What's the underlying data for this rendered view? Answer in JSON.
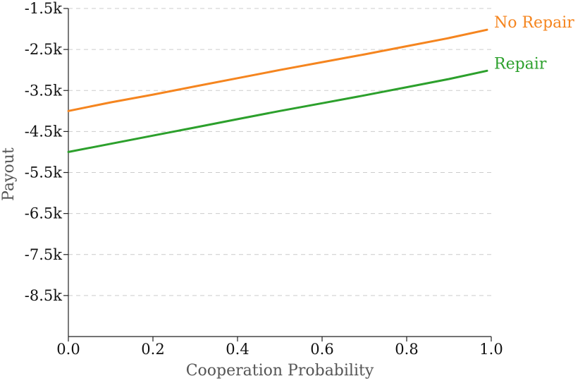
{
  "chart_data": {
    "type": "line",
    "xlabel": "Cooperation Probability",
    "ylabel": "Payout",
    "xlim": [
      0.0,
      1.0
    ],
    "ylim": [
      -9.5,
      -1.5
    ],
    "x_ticks": [
      0.0,
      0.2,
      0.4,
      0.6,
      0.8,
      1.0
    ],
    "x_tick_labels": [
      "0.0",
      "0.2",
      "0.4",
      "0.6",
      "0.8",
      "1.0"
    ],
    "y_ticks": [
      -1.5,
      -2.5,
      -3.5,
      -4.5,
      -5.5,
      -6.5,
      -7.5,
      -8.5
    ],
    "y_tick_labels": [
      "-1.5k",
      "-2.5k",
      "-3.5k",
      "-4.5k",
      "-5.5k",
      "-6.5k",
      "-7.5k",
      "-8.5k"
    ],
    "grid": "horizontal-dashed",
    "legend": "inline-right",
    "series": [
      {
        "name": "No Repair",
        "color": "#f5851f",
        "x": [
          0.0,
          0.1,
          0.2,
          0.3,
          0.4,
          0.5,
          0.6,
          0.7,
          0.8,
          0.9,
          0.99
        ],
        "values": [
          -4.0,
          -3.79,
          -3.6,
          -3.4,
          -3.2,
          -3.0,
          -2.81,
          -2.62,
          -2.42,
          -2.22,
          -2.02
        ]
      },
      {
        "name": "Repair",
        "color": "#2ca02c",
        "x": [
          0.0,
          0.1,
          0.2,
          0.3,
          0.4,
          0.5,
          0.6,
          0.7,
          0.8,
          0.9,
          0.99
        ],
        "values": [
          -5.0,
          -4.8,
          -4.6,
          -4.4,
          -4.2,
          -4.0,
          -3.81,
          -3.62,
          -3.42,
          -3.22,
          -3.02
        ]
      }
    ]
  }
}
